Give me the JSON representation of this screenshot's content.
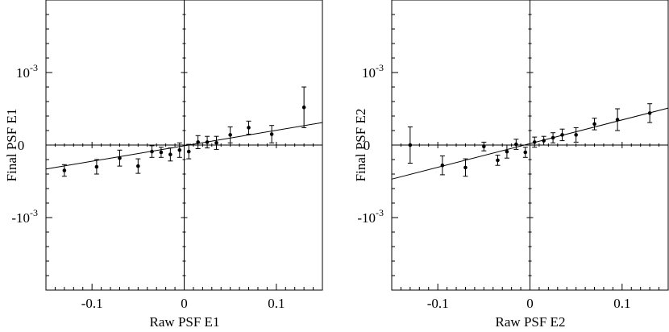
{
  "chart_data": [
    {
      "type": "scatter",
      "xlabel": "Raw PSF E1",
      "ylabel": "Final PSF E1",
      "xlim": [
        -0.15,
        0.15
      ],
      "ylim": [
        -0.002,
        0.002
      ],
      "xticks": [
        -0.1,
        0,
        0.1
      ],
      "xtick_labels": [
        "-0.1",
        "0",
        "0.1"
      ],
      "yticks": [
        -0.001,
        0,
        0.001
      ],
      "ytick_labels": [
        "-10",
        "0",
        "10"
      ],
      "ytick_exponents": [
        "-3",
        "",
        "-3"
      ],
      "grid": false,
      "zero_lines": true,
      "points": [
        {
          "x": -0.13,
          "y": -0.00035,
          "err": 8e-05
        },
        {
          "x": -0.095,
          "y": -0.0003,
          "err": 0.0001
        },
        {
          "x": -0.07,
          "y": -0.00018,
          "err": 0.00011
        },
        {
          "x": -0.05,
          "y": -0.00029,
          "err": 0.0001
        },
        {
          "x": -0.035,
          "y": -9e-05,
          "err": 8e-05
        },
        {
          "x": -0.025,
          "y": -0.0001,
          "err": 7e-05
        },
        {
          "x": -0.015,
          "y": -0.00013,
          "err": 9e-05
        },
        {
          "x": -0.005,
          "y": -7e-05,
          "err": 0.0001
        },
        {
          "x": 0.005,
          "y": -9e-05,
          "err": 0.0001
        },
        {
          "x": 0.015,
          "y": 4e-05,
          "err": 9e-05
        },
        {
          "x": 0.025,
          "y": 4e-05,
          "err": 8e-05
        },
        {
          "x": 0.035,
          "y": 3e-05,
          "err": 9e-05
        },
        {
          "x": 0.05,
          "y": 0.00014,
          "err": 0.00011
        },
        {
          "x": 0.07,
          "y": 0.00024,
          "err": 9e-05
        },
        {
          "x": 0.095,
          "y": 0.00015,
          "err": 0.00012
        },
        {
          "x": 0.13,
          "y": 0.00052,
          "err": 0.00028
        }
      ],
      "fit_line": {
        "x": [
          -0.15,
          0.15
        ],
        "y": [
          -0.00033,
          0.00031
        ]
      }
    },
    {
      "type": "scatter",
      "xlabel": "Raw PSF E2",
      "ylabel": "Final PSF E2",
      "xlim": [
        -0.15,
        0.15
      ],
      "ylim": [
        -0.002,
        0.002
      ],
      "xticks": [
        -0.1,
        0,
        0.1
      ],
      "xtick_labels": [
        "-0.1",
        "0",
        "0.1"
      ],
      "yticks": [
        -0.001,
        0,
        0.001
      ],
      "ytick_labels": [
        "-10",
        "0",
        "10"
      ],
      "ytick_exponents": [
        "-3",
        "",
        "-3"
      ],
      "grid": false,
      "zero_lines": true,
      "points": [
        {
          "x": -0.13,
          "y": 0.0,
          "err": 0.00025
        },
        {
          "x": -0.095,
          "y": -0.00028,
          "err": 0.00013
        },
        {
          "x": -0.07,
          "y": -0.00031,
          "err": 0.00012
        },
        {
          "x": -0.05,
          "y": -2e-05,
          "err": 6e-05
        },
        {
          "x": -0.035,
          "y": -0.00021,
          "err": 7e-05
        },
        {
          "x": -0.025,
          "y": -9e-05,
          "err": 9e-05
        },
        {
          "x": -0.015,
          "y": 1e-05,
          "err": 7e-05
        },
        {
          "x": -0.005,
          "y": -0.0001,
          "err": 7e-05
        },
        {
          "x": 0.005,
          "y": 4e-05,
          "err": 7e-05
        },
        {
          "x": 0.015,
          "y": 6e-05,
          "err": 6e-05
        },
        {
          "x": 0.025,
          "y": 0.0001,
          "err": 7e-05
        },
        {
          "x": 0.035,
          "y": 0.00014,
          "err": 8e-05
        },
        {
          "x": 0.05,
          "y": 0.00014,
          "err": 0.0001
        },
        {
          "x": 0.07,
          "y": 0.00029,
          "err": 8e-05
        },
        {
          "x": 0.095,
          "y": 0.00035,
          "err": 0.00015
        },
        {
          "x": 0.13,
          "y": 0.00044,
          "err": 0.00013
        }
      ],
      "fit_line": {
        "x": [
          -0.15,
          0.15
        ],
        "y": [
          -0.00047,
          0.00051
        ]
      }
    }
  ]
}
